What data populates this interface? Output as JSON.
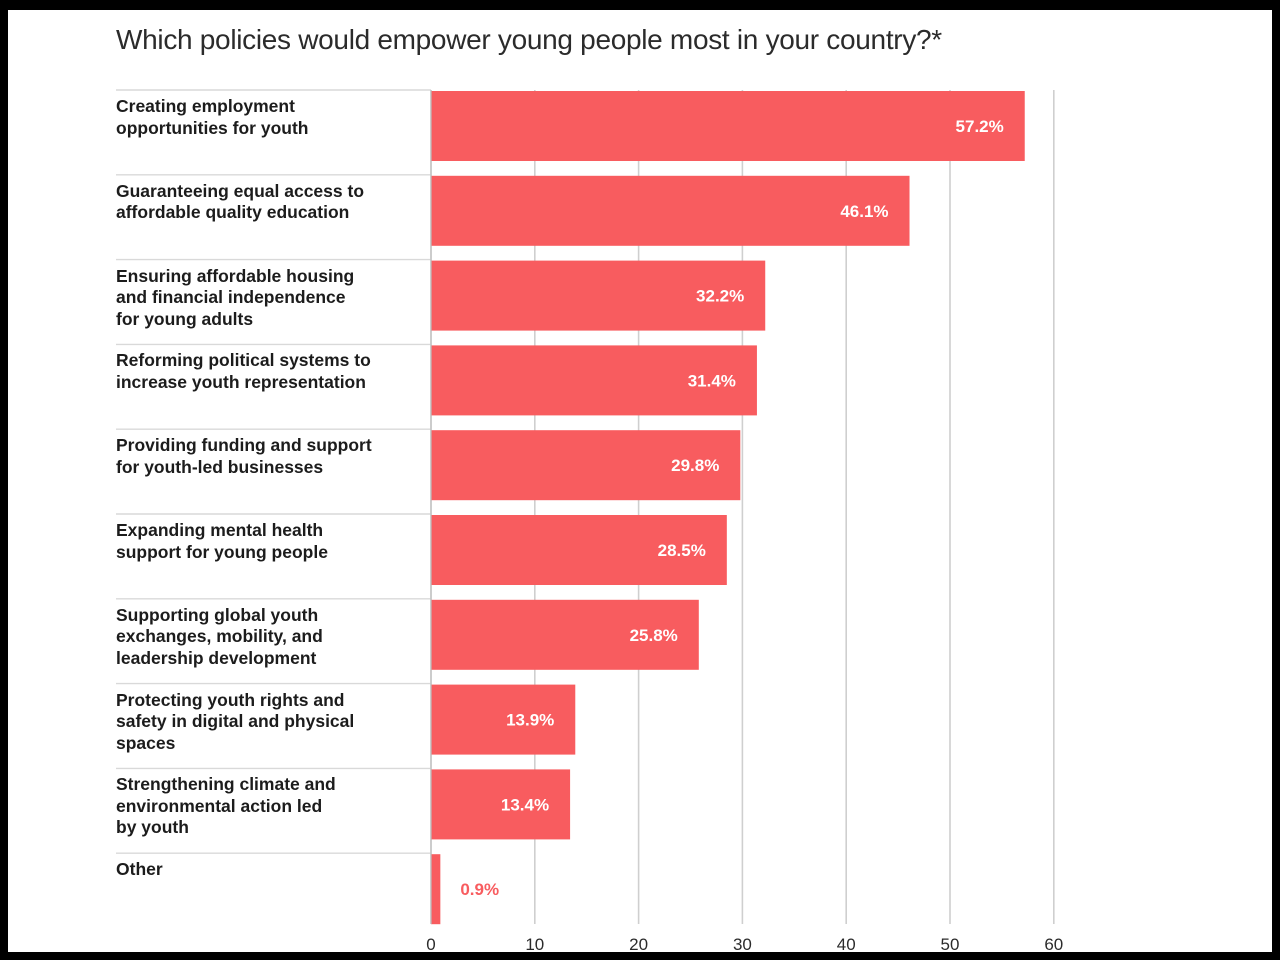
{
  "title": "Which policies would empower young people most in your country?*",
  "colors": {
    "bar": "#f85c5f",
    "bar_label_inside": "#ffffff",
    "bar_label_outside": "#f85c5f",
    "grid": "#cfcfcf",
    "row_divider": "#d9d9d9",
    "frame_border": "#000000"
  },
  "chart_data": {
    "type": "bar",
    "orientation": "horizontal",
    "title": "Which policies would empower young people most in your country?*",
    "categories": [
      [
        "Creating employment",
        "opportunities for youth"
      ],
      [
        "Guaranteeing equal access to",
        "affordable quality education"
      ],
      [
        "Ensuring affordable housing",
        "and financial independence",
        "for young adults"
      ],
      [
        "Reforming political systems to",
        "increase youth representation"
      ],
      [
        "Providing funding and support",
        "for youth-led businesses"
      ],
      [
        "Expanding mental health",
        "support for young people"
      ],
      [
        "Supporting global youth",
        "exchanges, mobility, and",
        "leadership development"
      ],
      [
        "Protecting youth rights and",
        "safety in digital and physical",
        "spaces"
      ],
      [
        "Strengthening climate and",
        "environmental action led",
        "by youth"
      ],
      [
        "Other"
      ]
    ],
    "values": [
      57.2,
      46.1,
      32.2,
      31.4,
      29.8,
      28.5,
      25.8,
      13.9,
      13.4,
      0.9
    ],
    "value_labels": [
      "57.2%",
      "46.1%",
      "32.2%",
      "31.4%",
      "29.8%",
      "28.5%",
      "25.8%",
      "13.9%",
      "13.4%",
      "0.9%"
    ],
    "xlim": [
      0,
      60
    ],
    "xticks": [
      "0",
      "10",
      "20",
      "30",
      "40",
      "50",
      "60"
    ],
    "grid": true
  }
}
